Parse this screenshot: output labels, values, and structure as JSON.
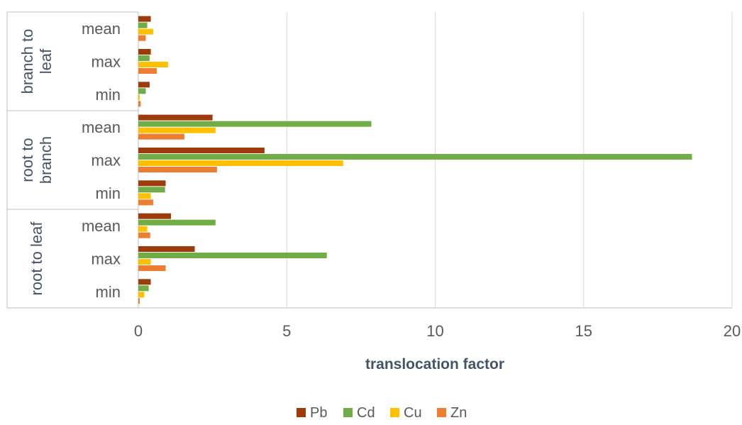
{
  "chart_data": {
    "type": "bar",
    "orientation": "horizontal",
    "xlabel": "translocation factor",
    "xlim": [
      0,
      20
    ],
    "xticks": [
      0,
      5,
      10,
      15,
      20
    ],
    "grid": true,
    "legend_position": "bottom",
    "groups": [
      {
        "name": "branch to leaf",
        "lines": [
          "branch to",
          "leaf"
        ],
        "categories": [
          "mean",
          "max",
          "min"
        ]
      },
      {
        "name": "root to branch",
        "lines": [
          "root to",
          "branch"
        ],
        "categories": [
          "mean",
          "max",
          "min"
        ]
      },
      {
        "name": "root to leaf",
        "lines": [
          "root to leaf"
        ],
        "categories": [
          "mean",
          "max",
          "min"
        ]
      }
    ],
    "series": [
      {
        "name": "Pb",
        "color": "#9e3b0a",
        "values": [
          [
            0.42,
            0.42,
            0.38
          ],
          [
            2.5,
            4.25,
            0.92
          ],
          [
            1.1,
            1.9,
            0.42
          ]
        ]
      },
      {
        "name": "Cd",
        "color": "#70ad47",
        "values": [
          [
            0.3,
            0.38,
            0.25
          ],
          [
            7.85,
            18.65,
            0.9
          ],
          [
            2.6,
            6.35,
            0.35
          ]
        ]
      },
      {
        "name": "Cu",
        "color": "#ffc000",
        "values": [
          [
            0.5,
            1.0,
            0.05
          ],
          [
            2.6,
            6.9,
            0.42
          ],
          [
            0.3,
            0.42,
            0.2
          ]
        ]
      },
      {
        "name": "Zn",
        "color": "#ed7d31",
        "values": [
          [
            0.25,
            0.62,
            0.08
          ],
          [
            1.55,
            2.65,
            0.5
          ],
          [
            0.4,
            0.92,
            0.05
          ]
        ]
      }
    ]
  }
}
